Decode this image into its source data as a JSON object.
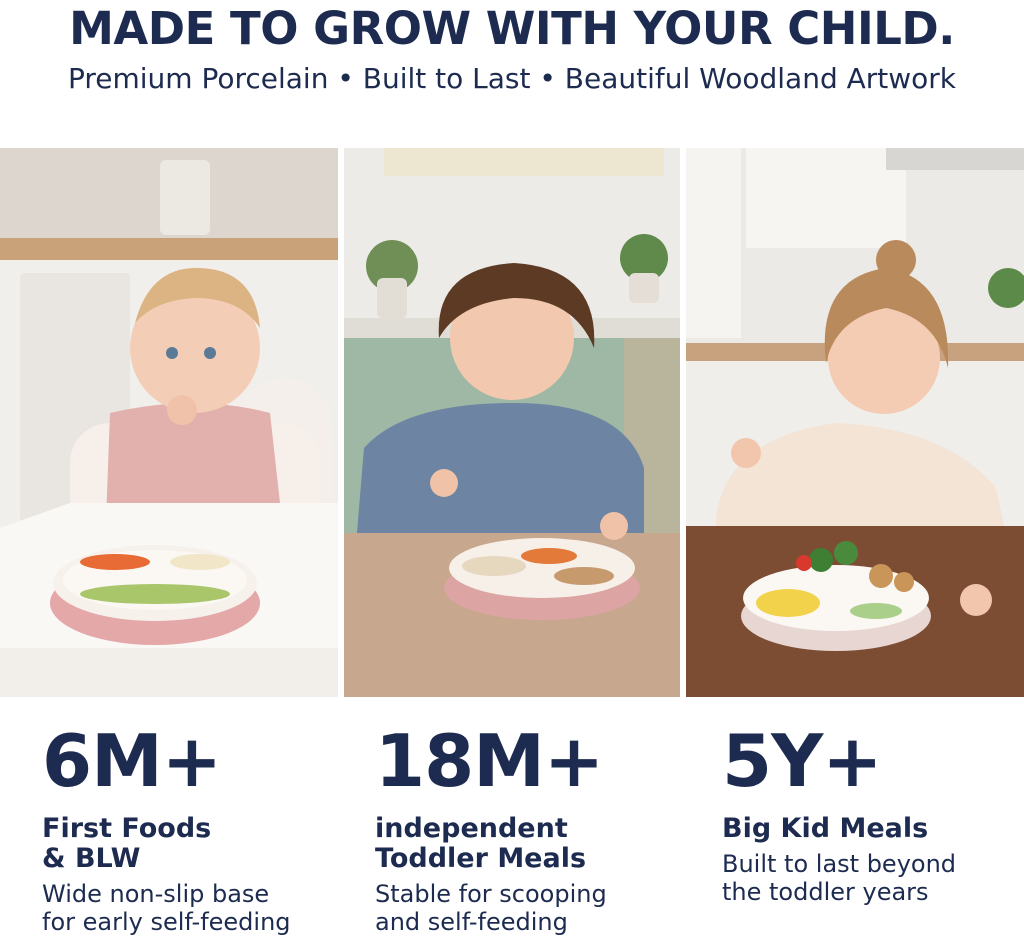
{
  "header": {
    "title": "MADE TO GROW WITH YOUR CHILD.",
    "subtitle": "Premium Porcelain • Built to Last • Beautiful Woodland Artwork"
  },
  "stages": [
    {
      "age": "6M+",
      "title": [
        "First Foods",
        "& BLW"
      ],
      "description": [
        "Wide non-slip base",
        "for early self-feeding"
      ]
    },
    {
      "age": "18M+",
      "title": [
        "independent",
        "Toddler Meals"
      ],
      "description": [
        "Stable for scooping",
        "and self-feeding"
      ]
    },
    {
      "age": "5Y+",
      "title": [
        "Big Kid Meals"
      ],
      "description": [
        "Built to last beyond",
        "the toddler years"
      ]
    }
  ]
}
